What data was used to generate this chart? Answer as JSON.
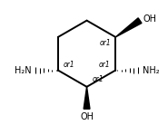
{
  "background_color": "#ffffff",
  "ring_color": "#000000",
  "line_width": 1.4,
  "font_size": 7.0,
  "or1_font_size": 5.5,
  "oh_text": "OH",
  "nh2_left_text": "H₂N",
  "nh2_right_text": "NH₂"
}
